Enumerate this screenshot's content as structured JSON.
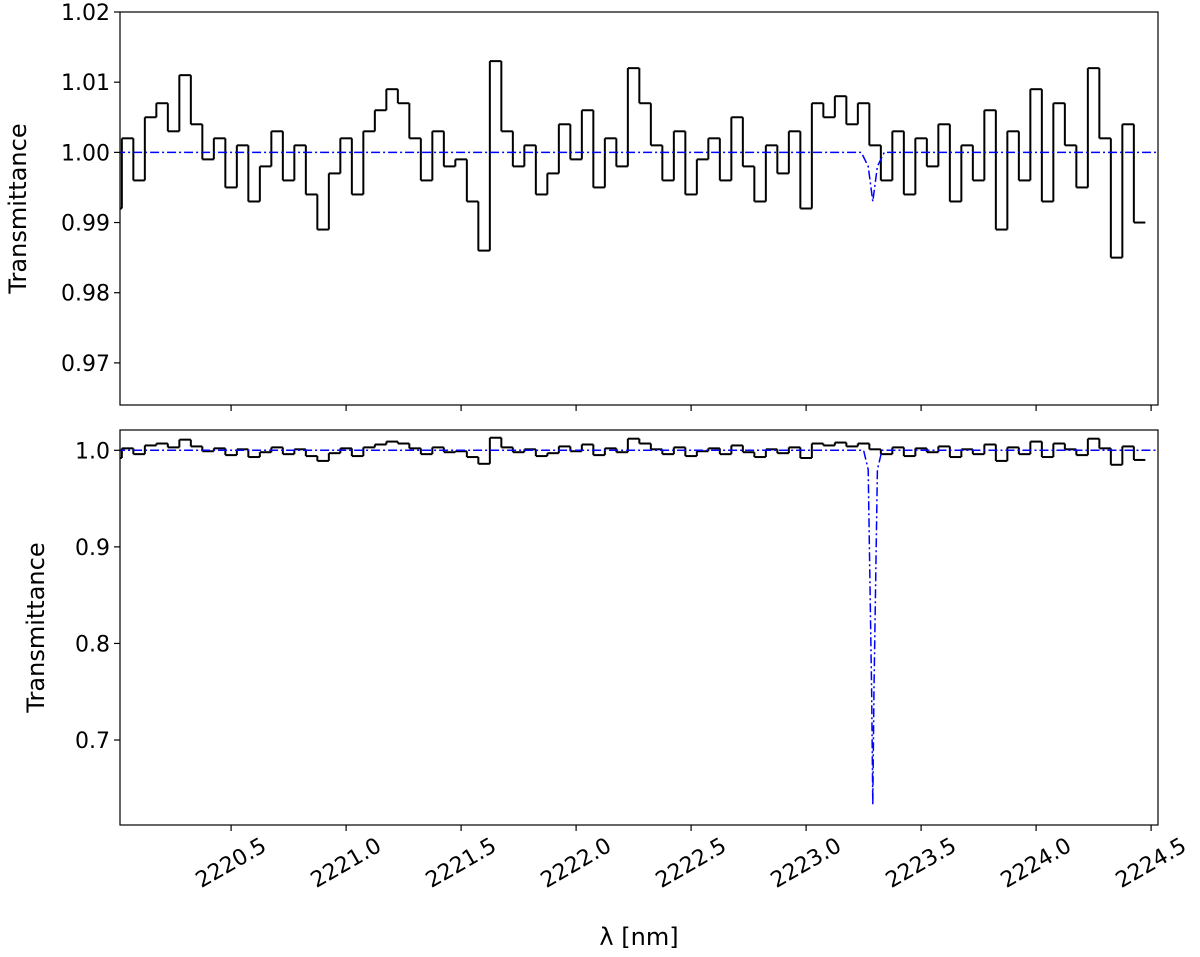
{
  "chart_data": [
    {
      "type": "line",
      "ylabel": "Transmittance",
      "xlim": [
        2220.017,
        2224.53
      ],
      "ylim": [
        0.964,
        1.02
      ],
      "xticks": [
        2220.5,
        2221,
        2221.5,
        2222,
        2222.5,
        2223,
        2223.5,
        2224,
        2224.5
      ],
      "yticks": [
        0.97,
        0.98,
        0.99,
        {
          "value": 1,
          "label": "1.00"
        },
        1.01,
        1.02
      ],
      "series": [
        {
          "color": "#000000",
          "style": "steps",
          "x": [
            2220.0,
            2220.05,
            2220.1,
            2220.15,
            2220.2,
            2220.25,
            2220.3,
            2220.35,
            2220.4,
            2220.45,
            2220.5,
            2220.55,
            2220.6,
            2220.65,
            2220.7,
            2220.75,
            2220.8,
            2220.85,
            2220.9,
            2220.95,
            2221.0,
            2221.05,
            2221.1,
            2221.15,
            2221.2,
            2221.25,
            2221.3,
            2221.35,
            2221.4,
            2221.45,
            2221.5,
            2221.55,
            2221.6,
            2221.65,
            2221.7,
            2221.75,
            2221.8,
            2221.85,
            2221.9,
            2221.95,
            2222.0,
            2222.05,
            2222.1,
            2222.15,
            2222.2,
            2222.25,
            2222.3,
            2222.35,
            2222.4,
            2222.45,
            2222.5,
            2222.55,
            2222.6,
            2222.65,
            2222.7,
            2222.75,
            2222.8,
            2222.85,
            2222.9,
            2222.95,
            2223.0,
            2223.05,
            2223.1,
            2223.15,
            2223.2,
            2223.25,
            2223.3,
            2223.35,
            2223.4,
            2223.45,
            2223.5,
            2223.55,
            2223.6,
            2223.65,
            2223.7,
            2223.75,
            2223.8,
            2223.85,
            2223.9,
            2223.95,
            2224.0,
            2224.05,
            2224.1,
            2224.15,
            2224.2,
            2224.25,
            2224.3,
            2224.35,
            2224.4,
            2224.45
          ],
          "values": [
            0.992,
            1.002,
            0.996,
            1.005,
            1.007,
            1.003,
            1.011,
            1.004,
            0.999,
            1.002,
            0.995,
            1.001,
            0.993,
            0.998,
            1.003,
            0.996,
            1.001,
            0.994,
            0.989,
            0.997,
            1.002,
            0.994,
            1.003,
            1.006,
            1.009,
            1.007,
            1.002,
            0.996,
            1.003,
            0.998,
            0.999,
            0.993,
            0.986,
            1.013,
            1.003,
            0.998,
            1.001,
            0.994,
            0.997,
            1.004,
            0.999,
            1.006,
            0.995,
            1.002,
            0.998,
            1.012,
            1.007,
            1.001,
            0.996,
            1.003,
            0.994,
            0.999,
            1.002,
            0.996,
            1.005,
            0.998,
            0.993,
            1.001,
            0.997,
            1.003,
            0.992,
            1.007,
            1.005,
            1.008,
            1.004,
            1.007,
            1.001,
            0.996,
            1.003,
            0.994,
            1.002,
            0.998,
            1.004,
            0.993,
            1.001,
            0.996,
            1.006,
            0.989,
            1.003,
            0.996,
            1.009,
            0.993,
            1.007,
            1.001,
            0.995,
            1.012,
            1.002,
            0.985,
            1.004,
            0.99
          ]
        },
        {
          "color": "#0000ff",
          "style": "dashdot",
          "x": [
            2220.0,
            2223.24,
            2223.27,
            2223.29,
            2223.31,
            2223.34,
            2224.53
          ],
          "values": [
            1.0,
            1.0,
            0.998,
            0.993,
            0.998,
            1.0,
            1.0
          ]
        }
      ]
    },
    {
      "type": "line",
      "ylabel": "Transmittance",
      "xlabel": "λ [nm]",
      "xlim": [
        2220.017,
        2224.53
      ],
      "ylim": [
        0.612,
        1.021
      ],
      "xticks": [
        2220.5,
        {
          "value": 2221,
          "label": "2221.0"
        },
        2221.5,
        {
          "value": 2222,
          "label": "2222.0"
        },
        2222.5,
        {
          "value": 2223,
          "label": "2223.0"
        },
        2223.5,
        {
          "value": 2224,
          "label": "2224.0"
        },
        2224.5
      ],
      "yticks": [
        0.7,
        0.8,
        0.9,
        {
          "value": 1,
          "label": "1.0"
        }
      ],
      "series": [
        {
          "color": "#000000",
          "style": "steps",
          "x": [
            2220.0,
            2220.05,
            2220.1,
            2220.15,
            2220.2,
            2220.25,
            2220.3,
            2220.35,
            2220.4,
            2220.45,
            2220.5,
            2220.55,
            2220.6,
            2220.65,
            2220.7,
            2220.75,
            2220.8,
            2220.85,
            2220.9,
            2220.95,
            2221.0,
            2221.05,
            2221.1,
            2221.15,
            2221.2,
            2221.25,
            2221.3,
            2221.35,
            2221.4,
            2221.45,
            2221.5,
            2221.55,
            2221.6,
            2221.65,
            2221.7,
            2221.75,
            2221.8,
            2221.85,
            2221.9,
            2221.95,
            2222.0,
            2222.05,
            2222.1,
            2222.15,
            2222.2,
            2222.25,
            2222.3,
            2222.35,
            2222.4,
            2222.45,
            2222.5,
            2222.55,
            2222.6,
            2222.65,
            2222.7,
            2222.75,
            2222.8,
            2222.85,
            2222.9,
            2222.95,
            2223.0,
            2223.05,
            2223.1,
            2223.15,
            2223.2,
            2223.25,
            2223.3,
            2223.35,
            2223.4,
            2223.45,
            2223.5,
            2223.55,
            2223.6,
            2223.65,
            2223.7,
            2223.75,
            2223.8,
            2223.85,
            2223.9,
            2223.95,
            2224.0,
            2224.05,
            2224.1,
            2224.15,
            2224.2,
            2224.25,
            2224.3,
            2224.35,
            2224.4,
            2224.45
          ],
          "values": [
            0.992,
            1.002,
            0.996,
            1.005,
            1.007,
            1.003,
            1.011,
            1.004,
            0.999,
            1.002,
            0.995,
            1.001,
            0.993,
            0.998,
            1.003,
            0.996,
            1.001,
            0.994,
            0.989,
            0.997,
            1.002,
            0.994,
            1.003,
            1.006,
            1.009,
            1.007,
            1.002,
            0.996,
            1.003,
            0.998,
            0.999,
            0.993,
            0.986,
            1.013,
            1.003,
            0.998,
            1.001,
            0.994,
            0.997,
            1.004,
            0.999,
            1.006,
            0.995,
            1.002,
            0.998,
            1.012,
            1.007,
            1.001,
            0.996,
            1.003,
            0.994,
            0.999,
            1.002,
            0.996,
            1.005,
            0.998,
            0.993,
            1.001,
            0.997,
            1.003,
            0.992,
            1.007,
            1.005,
            1.008,
            1.004,
            1.007,
            1.001,
            0.996,
            1.003,
            0.994,
            1.002,
            0.998,
            1.004,
            0.993,
            1.001,
            0.996,
            1.006,
            0.989,
            1.003,
            0.996,
            1.009,
            0.993,
            1.007,
            1.001,
            0.995,
            1.012,
            1.002,
            0.985,
            1.004,
            0.99
          ]
        },
        {
          "color": "#0000ff",
          "style": "dashdot",
          "x": [
            2220.0,
            2223.25,
            2223.27,
            2223.285,
            2223.29,
            2223.295,
            2223.31,
            2223.33,
            2224.53
          ],
          "values": [
            1.0,
            1.0,
            0.98,
            0.75,
            0.633,
            0.75,
            0.98,
            1.0,
            1.0
          ]
        }
      ]
    }
  ]
}
